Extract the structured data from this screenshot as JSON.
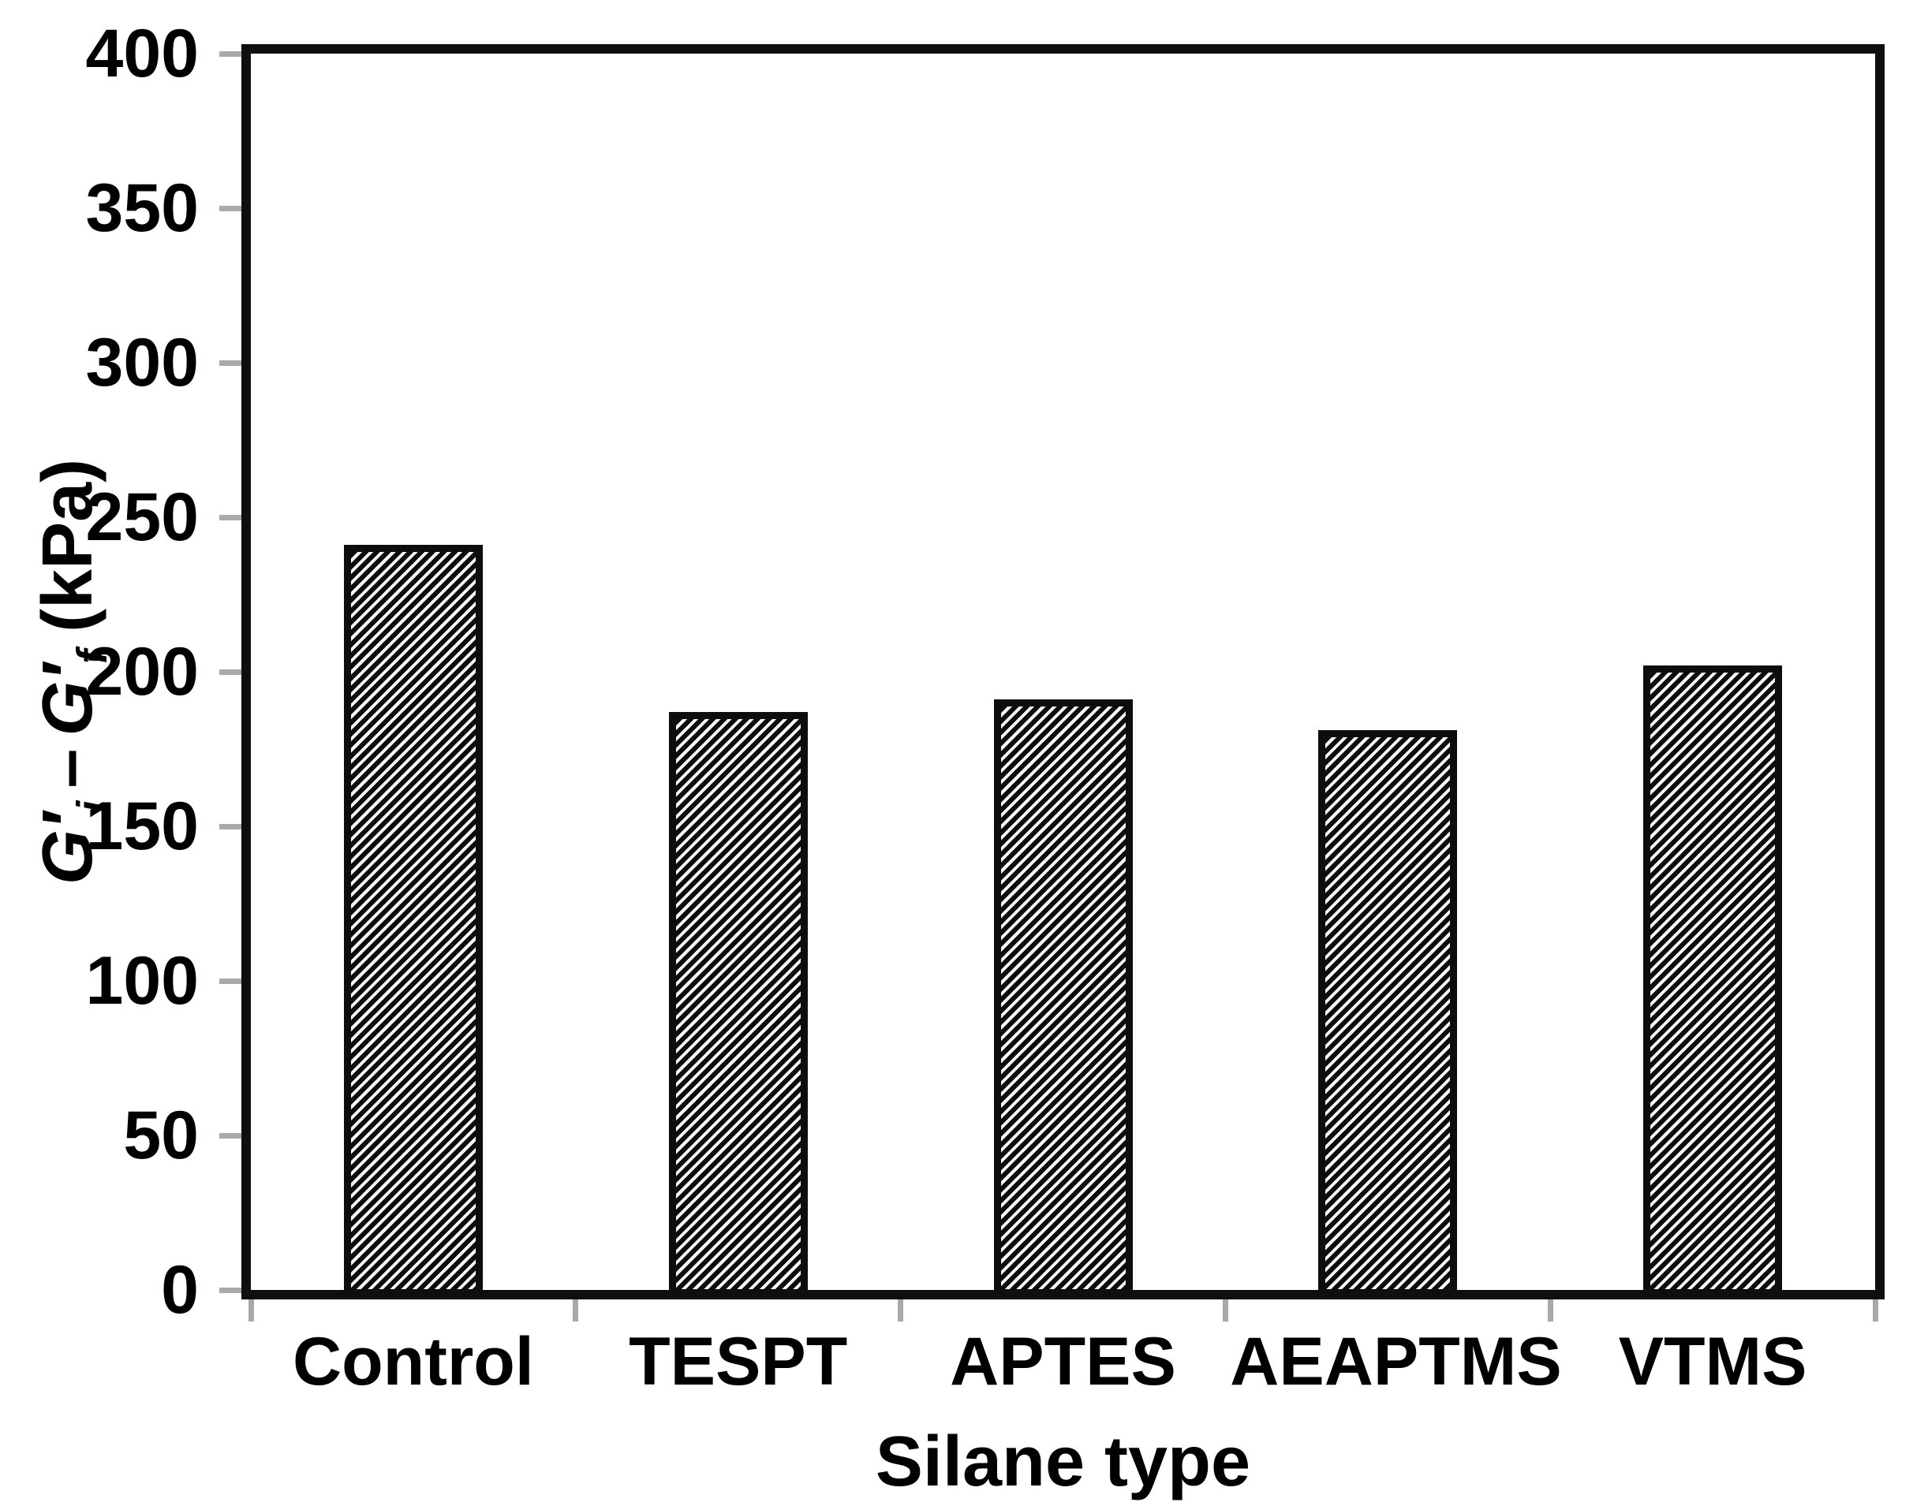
{
  "chart_data": {
    "type": "bar",
    "title": "",
    "xlabel": "Silane type",
    "ylabel": "G′i – G′f (kPa)",
    "ylabel_parts": {
      "term1": "G′",
      "term1_sub": "i",
      "operator": "–",
      "term2": "G′",
      "term2_sub": "f",
      "unit": "(kPa)"
    },
    "categories": [
      "Control",
      "TESPT",
      "APTES",
      "AEAPTMS",
      "VTMS"
    ],
    "values": [
      241,
      187,
      191,
      181,
      202
    ],
    "ylim": [
      0,
      400
    ],
    "ytick_interval": 50,
    "ytick_labels": [
      "0",
      "50",
      "100",
      "150",
      "200",
      "250",
      "300",
      "350",
      "400"
    ],
    "grid": "off",
    "legend": "none",
    "bar_style": {
      "fill": "diagonal-hatch",
      "hatch_direction": "forward-slash",
      "bar_color": "#0d0d0d",
      "hatch_gap_color": "#f7f7f7"
    },
    "axis_style": {
      "frame": "box",
      "frame_color": "#0f0f0f",
      "tick_color": "#a9a9a9",
      "text_color": "#000000",
      "background": "#ffffff"
    }
  }
}
